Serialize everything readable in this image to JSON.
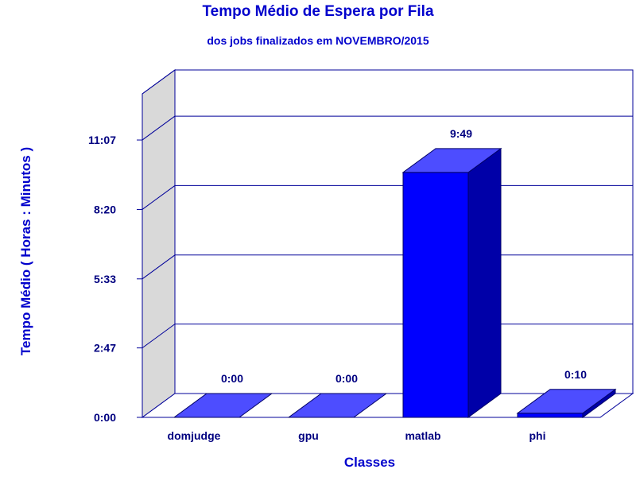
{
  "chart_data": {
    "type": "bar",
    "title": "Tempo Médio de Espera por Fila",
    "subtitle": "dos jobs finalizados em NOVEMBRO/2015",
    "xlabel": "Classes",
    "ylabel": "Tempo Médio ( Horas : Minutos )",
    "categories": [
      "domjudge",
      "gpu",
      "matlab",
      "phi"
    ],
    "values_minutes": [
      0,
      0,
      589,
      10
    ],
    "value_labels": [
      "0:00",
      "0:00",
      "9:49",
      "0:10"
    ],
    "yticks_minutes": [
      0,
      167,
      333,
      500,
      667
    ],
    "ytick_labels": [
      "0:00",
      "2:47",
      "5:33",
      "8:20",
      "11:07"
    ],
    "ylim_minutes": [
      0,
      778
    ],
    "grid": true,
    "colors": {
      "bar_front": "#0000ff",
      "bar_top": "#4d4dff",
      "bar_side": "#0000a8",
      "axis": "#000099",
      "wall": "#d9d9d9",
      "title": "#0000cc",
      "label": "#000080"
    }
  }
}
